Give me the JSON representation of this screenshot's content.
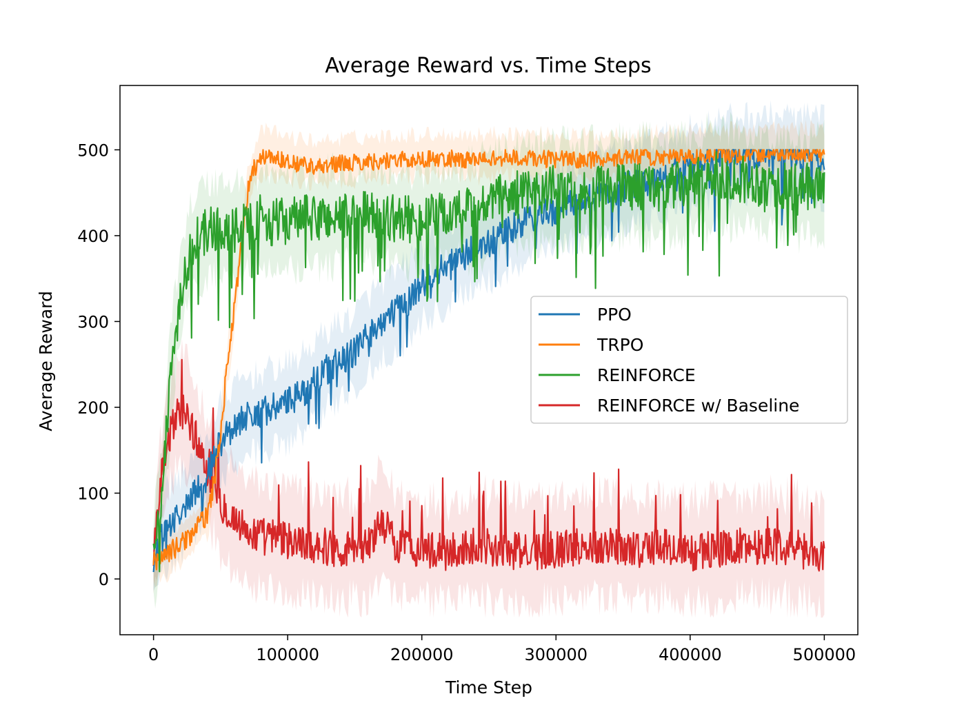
{
  "chart_data": {
    "type": "line",
    "title": "Average Reward vs. Time Steps",
    "xlabel": "Time Step",
    "ylabel": "Average Reward",
    "xlim": [
      -25000,
      525000
    ],
    "ylim": [
      -65,
      575
    ],
    "xticks": [
      0,
      100000,
      200000,
      300000,
      400000,
      500000
    ],
    "xtick_labels": [
      "0",
      "100000",
      "200000",
      "300000",
      "400000",
      "500000"
    ],
    "yticks": [
      0,
      100,
      200,
      300,
      400,
      500
    ],
    "ytick_labels": [
      "0",
      "100",
      "200",
      "300",
      "400",
      "500"
    ],
    "grid": false,
    "legend_position": "center-right",
    "series": [
      {
        "name": "PPO",
        "color": "#1f77b4",
        "x": [
          0,
          5000,
          10000,
          20000,
          30000,
          40000,
          50000,
          60000,
          70000,
          80000,
          90000,
          100000,
          110000,
          120000,
          130000,
          140000,
          150000,
          160000,
          170000,
          180000,
          190000,
          200000,
          210000,
          220000,
          230000,
          240000,
          250000,
          260000,
          270000,
          280000,
          290000,
          300000,
          320000,
          340000,
          360000,
          380000,
          400000,
          420000,
          440000,
          460000,
          480000,
          500000
        ],
        "y": [
          20,
          45,
          60,
          75,
          100,
          120,
          160,
          180,
          190,
          195,
          200,
          205,
          215,
          230,
          245,
          255,
          265,
          285,
          300,
          310,
          325,
          345,
          355,
          365,
          375,
          385,
          390,
          400,
          410,
          420,
          425,
          430,
          440,
          450,
          460,
          470,
          480,
          490,
          495,
          495,
          495,
          490
        ]
      },
      {
        "name": "TRPO",
        "color": "#ff7f0e",
        "x": [
          0,
          5000,
          10000,
          20000,
          30000,
          40000,
          45000,
          50000,
          55000,
          60000,
          63000,
          66000,
          70000,
          75000,
          80000,
          85000,
          90000,
          100000,
          120000,
          140000,
          160000,
          180000,
          200000,
          220000,
          240000,
          260000,
          280000,
          300000,
          320000,
          340000,
          360000,
          380000,
          400000,
          420000,
          440000,
          460000,
          480000,
          500000
        ],
        "y": [
          20,
          25,
          30,
          40,
          55,
          75,
          110,
          170,
          250,
          310,
          350,
          400,
          450,
          480,
          495,
          498,
          495,
          490,
          485,
          488,
          490,
          492,
          493,
          494,
          492,
          495,
          494,
          493,
          492,
          494,
          495,
          496,
          497,
          498,
          499,
          500,
          500,
          500
        ]
      },
      {
        "name": "REINFORCE",
        "color": "#2ca02c",
        "x": [
          0,
          5000,
          10000,
          15000,
          20000,
          25000,
          30000,
          40000,
          50000,
          60000,
          70000,
          80000,
          90000,
          100000,
          120000,
          140000,
          160000,
          180000,
          200000,
          220000,
          240000,
          260000,
          280000,
          300000,
          320000,
          340000,
          360000,
          380000,
          400000,
          420000,
          440000,
          460000,
          480000,
          500000
        ],
        "y": [
          20,
          80,
          180,
          270,
          330,
          370,
          390,
          405,
          410,
          405,
          410,
          420,
          415,
          418,
          420,
          422,
          425,
          420,
          418,
          425,
          430,
          445,
          450,
          455,
          452,
          455,
          458,
          455,
          460,
          470,
          465,
          460,
          455,
          460
        ]
      },
      {
        "name": "REINFORCE w/ Baseline",
        "color": "#d62728",
        "x": [
          0,
          5000,
          10000,
          15000,
          20000,
          25000,
          30000,
          35000,
          40000,
          45000,
          50000,
          60000,
          70000,
          80000,
          90000,
          100000,
          120000,
          140000,
          160000,
          170000,
          180000,
          200000,
          220000,
          240000,
          260000,
          280000,
          300000,
          320000,
          340000,
          360000,
          380000,
          400000,
          420000,
          440000,
          460000,
          480000,
          500000
        ],
        "y": [
          20,
          100,
          160,
          180,
          200,
          190,
          170,
          150,
          130,
          110,
          90,
          70,
          55,
          50,
          48,
          45,
          40,
          35,
          38,
          70,
          40,
          35,
          30,
          40,
          35,
          30,
          35,
          38,
          40,
          35,
          38,
          30,
          35,
          38,
          40,
          35,
          25
        ]
      }
    ]
  }
}
